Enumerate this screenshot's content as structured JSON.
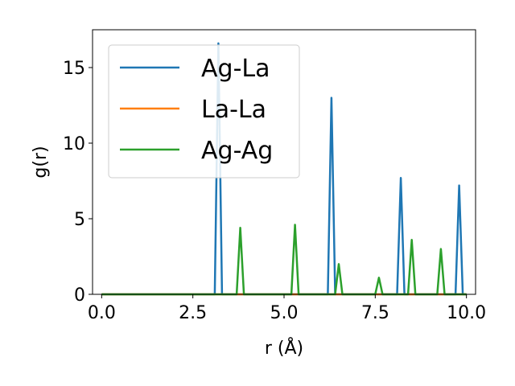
{
  "chart_data": {
    "type": "line",
    "xlabel": "r (Å)",
    "ylabel": "g(r)",
    "xlim": [
      -0.25,
      10.25
    ],
    "ylim": [
      0,
      17.5
    ],
    "xticks": [
      0.0,
      2.5,
      5.0,
      7.5,
      10.0
    ],
    "xtick_labels": [
      "0.0",
      "2.5",
      "5.0",
      "7.5",
      "10.0"
    ],
    "yticks": [
      0,
      5,
      10,
      15
    ],
    "ytick_labels": [
      "0",
      "5",
      "10",
      "15"
    ],
    "grid": false,
    "legend_position": "top-left",
    "series": [
      {
        "name": "Ag-La",
        "color": "#1f77b4",
        "x": [
          0.0,
          3.1,
          3.2,
          3.3,
          6.2,
          6.3,
          6.4,
          8.1,
          8.2,
          8.3,
          9.7,
          9.8,
          9.9,
          10.0
        ],
        "y": [
          0,
          0,
          16.6,
          0,
          0,
          13.0,
          0,
          0,
          7.7,
          0,
          0,
          7.2,
          0,
          0
        ]
      },
      {
        "name": "La-La",
        "color": "#ff7f0e",
        "x": [
          0.0,
          10.0
        ],
        "y": [
          0,
          0
        ]
      },
      {
        "name": "Ag-Ag",
        "color": "#2ca02c",
        "x": [
          0.0,
          3.7,
          3.8,
          3.9,
          5.2,
          5.3,
          5.4,
          6.4,
          6.5,
          6.6,
          7.5,
          7.6,
          7.7,
          8.4,
          8.5,
          8.6,
          9.2,
          9.3,
          9.4,
          10.0
        ],
        "y": [
          0,
          0,
          4.4,
          0,
          0,
          4.6,
          0,
          0,
          2.0,
          0,
          0,
          1.1,
          0,
          0,
          3.6,
          0,
          0,
          3.0,
          0,
          0
        ]
      }
    ]
  }
}
